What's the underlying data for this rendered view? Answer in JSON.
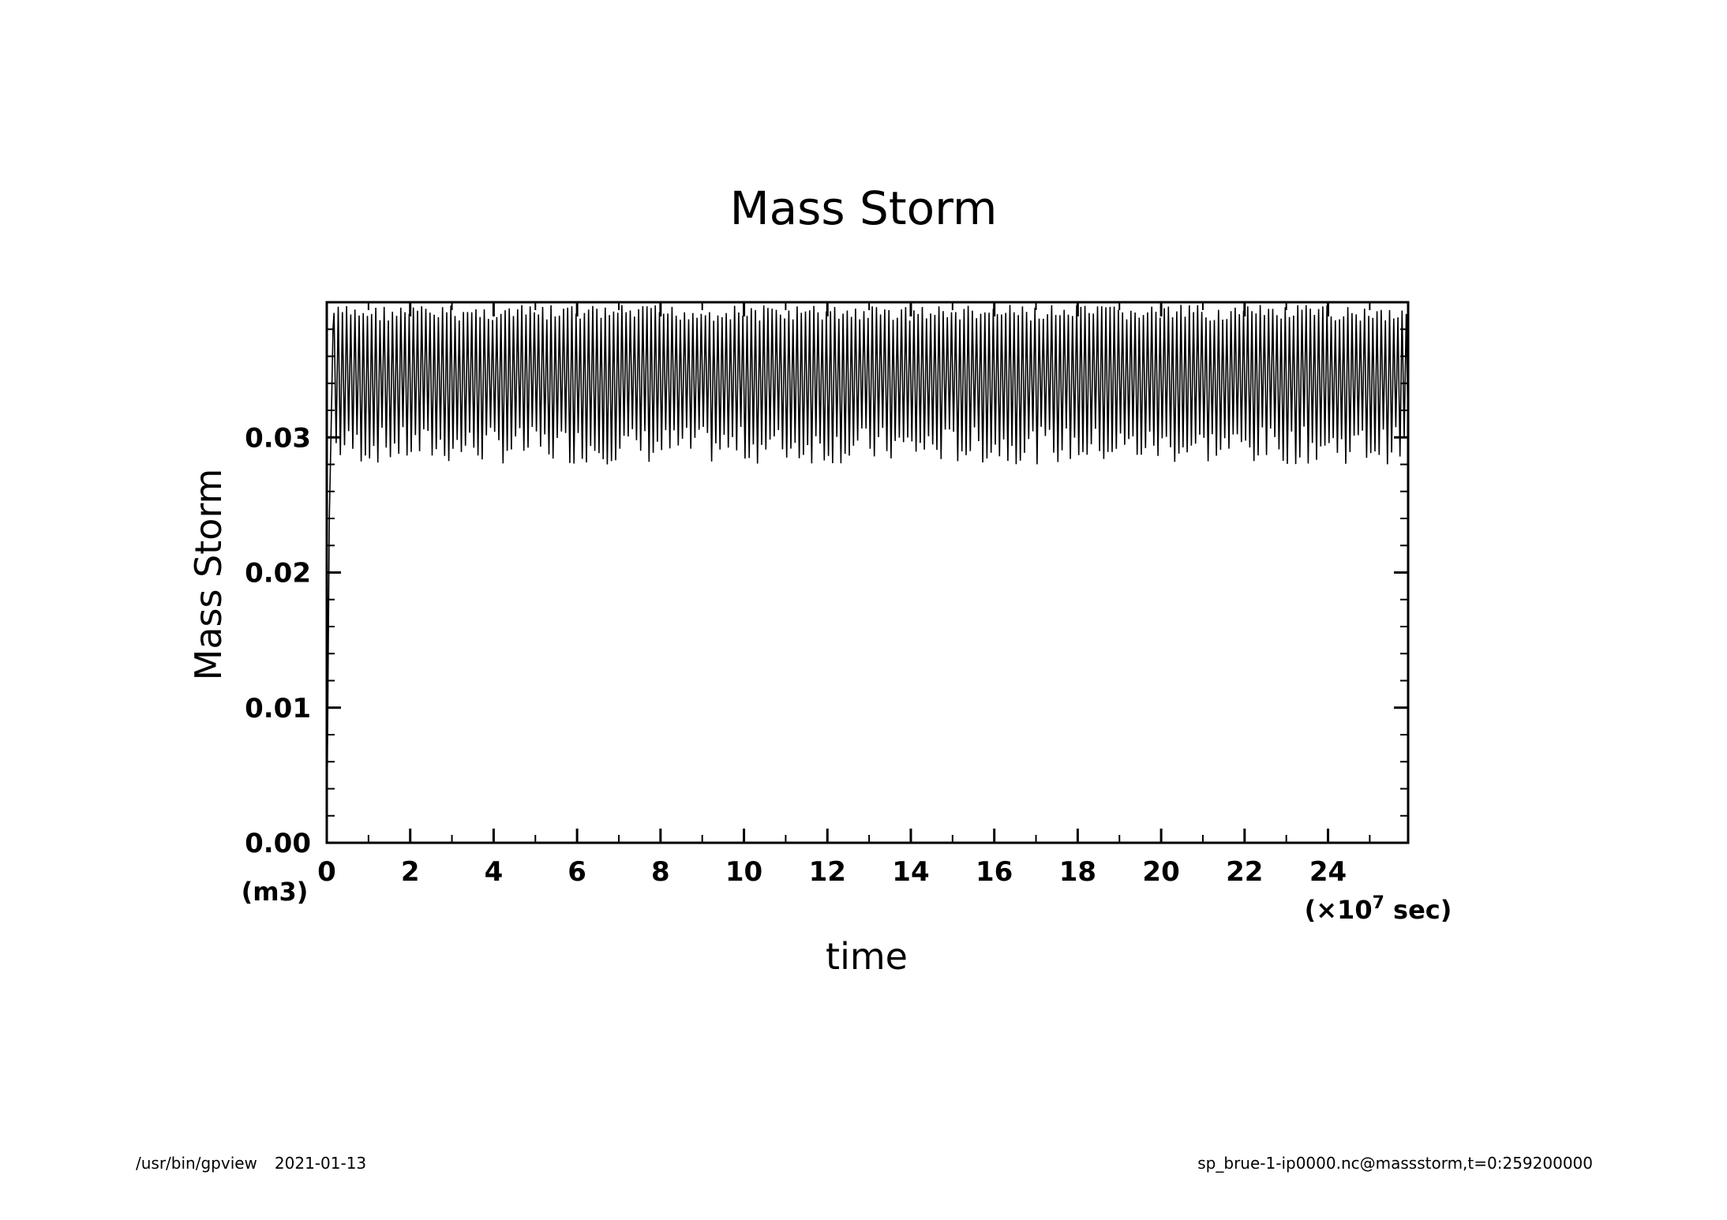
{
  "chart_data": {
    "type": "line",
    "title": "Mass Storm",
    "xlabel": "time",
    "ylabel": "Mass Storm",
    "xunit_prefix": "(×10",
    "xunit_exp": "7",
    "xunit_suffix": " sec)",
    "yunit": "(m3)",
    "xlim": [
      0,
      25.92
    ],
    "ylim": [
      0,
      0.04
    ],
    "x_ticks": [
      "0",
      "2",
      "4",
      "6",
      "8",
      "10",
      "12",
      "14",
      "16",
      "18",
      "20",
      "22",
      "24"
    ],
    "y_ticks": [
      "0.00",
      "0.01",
      "0.02",
      "0.03"
    ],
    "series": [
      {
        "color": "#000000",
        "description_values": {
          "ramp_up": [
            [
              0,
              0
            ],
            [
              0.03,
              0.012
            ],
            [
              0.06,
              0.024
            ],
            [
              0.1,
              0.03
            ],
            [
              0.15,
              0.038
            ]
          ],
          "oscillation_min": 0.028,
          "oscillation_max": 0.0398,
          "oscillation_period": 0.1
        }
      }
    ],
    "grid": false
  },
  "footer": {
    "program": "/usr/bin/gpview",
    "date": "2021-01-13",
    "source": "sp_brue-1-ip0000.nc@massstorm,t=0:259200000"
  }
}
